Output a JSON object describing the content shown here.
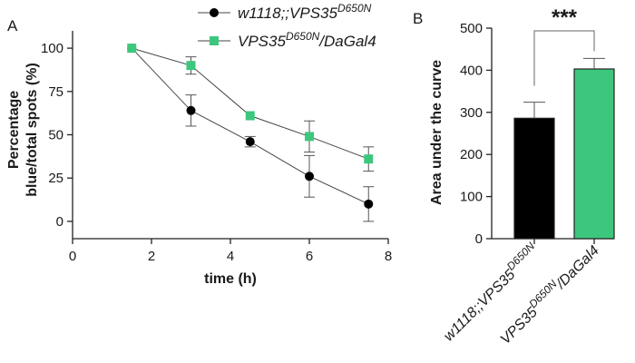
{
  "chart_data": [
    {
      "panel": "A",
      "type": "line",
      "xlabel": "time (h)",
      "ylabel_lines": [
        "Percentage",
        "blue/total spots (%)"
      ],
      "xlim": [
        0,
        8
      ],
      "ylim": [
        -10,
        110
      ],
      "xticks": [
        "0",
        "2",
        "4",
        "6",
        "8"
      ],
      "yticks": [
        "0",
        "25",
        "50",
        "75",
        "100"
      ],
      "grid": false,
      "legend_position": "top",
      "series": [
        {
          "name_main": "w1118;;VPS35",
          "name_sup": "D650N",
          "name_tail": "",
          "marker": "circle",
          "color": "#000000",
          "x": [
            1.5,
            3,
            4.5,
            6,
            7.5
          ],
          "y": [
            100,
            64,
            46,
            26,
            10
          ],
          "err": [
            0,
            9,
            3,
            12,
            10
          ]
        },
        {
          "name_main": "VPS35",
          "name_sup": "D650N",
          "name_tail": "/DaGal4",
          "marker": "square",
          "color": "#3cc77d",
          "x": [
            1.5,
            3,
            4.5,
            6,
            7.5
          ],
          "y": [
            100,
            90,
            61,
            49,
            36
          ],
          "err": [
            0,
            5,
            0,
            9,
            7
          ]
        }
      ]
    },
    {
      "panel": "B",
      "type": "bar",
      "ylabel": "Area under the curve",
      "ylim": [
        0,
        500
      ],
      "yticks": [
        "0",
        "100",
        "200",
        "300",
        "400",
        "500"
      ],
      "categories": [
        {
          "main": "w1118;;VPS35",
          "sup": "D650N",
          "tail": ""
        },
        {
          "main": "VPS35",
          "sup": "D650N",
          "tail": "/DaGal4"
        }
      ],
      "values": [
        286,
        403
      ],
      "errors": [
        38,
        25
      ],
      "colors": [
        "#000000",
        "#3cc77d"
      ],
      "significance": "***"
    }
  ]
}
